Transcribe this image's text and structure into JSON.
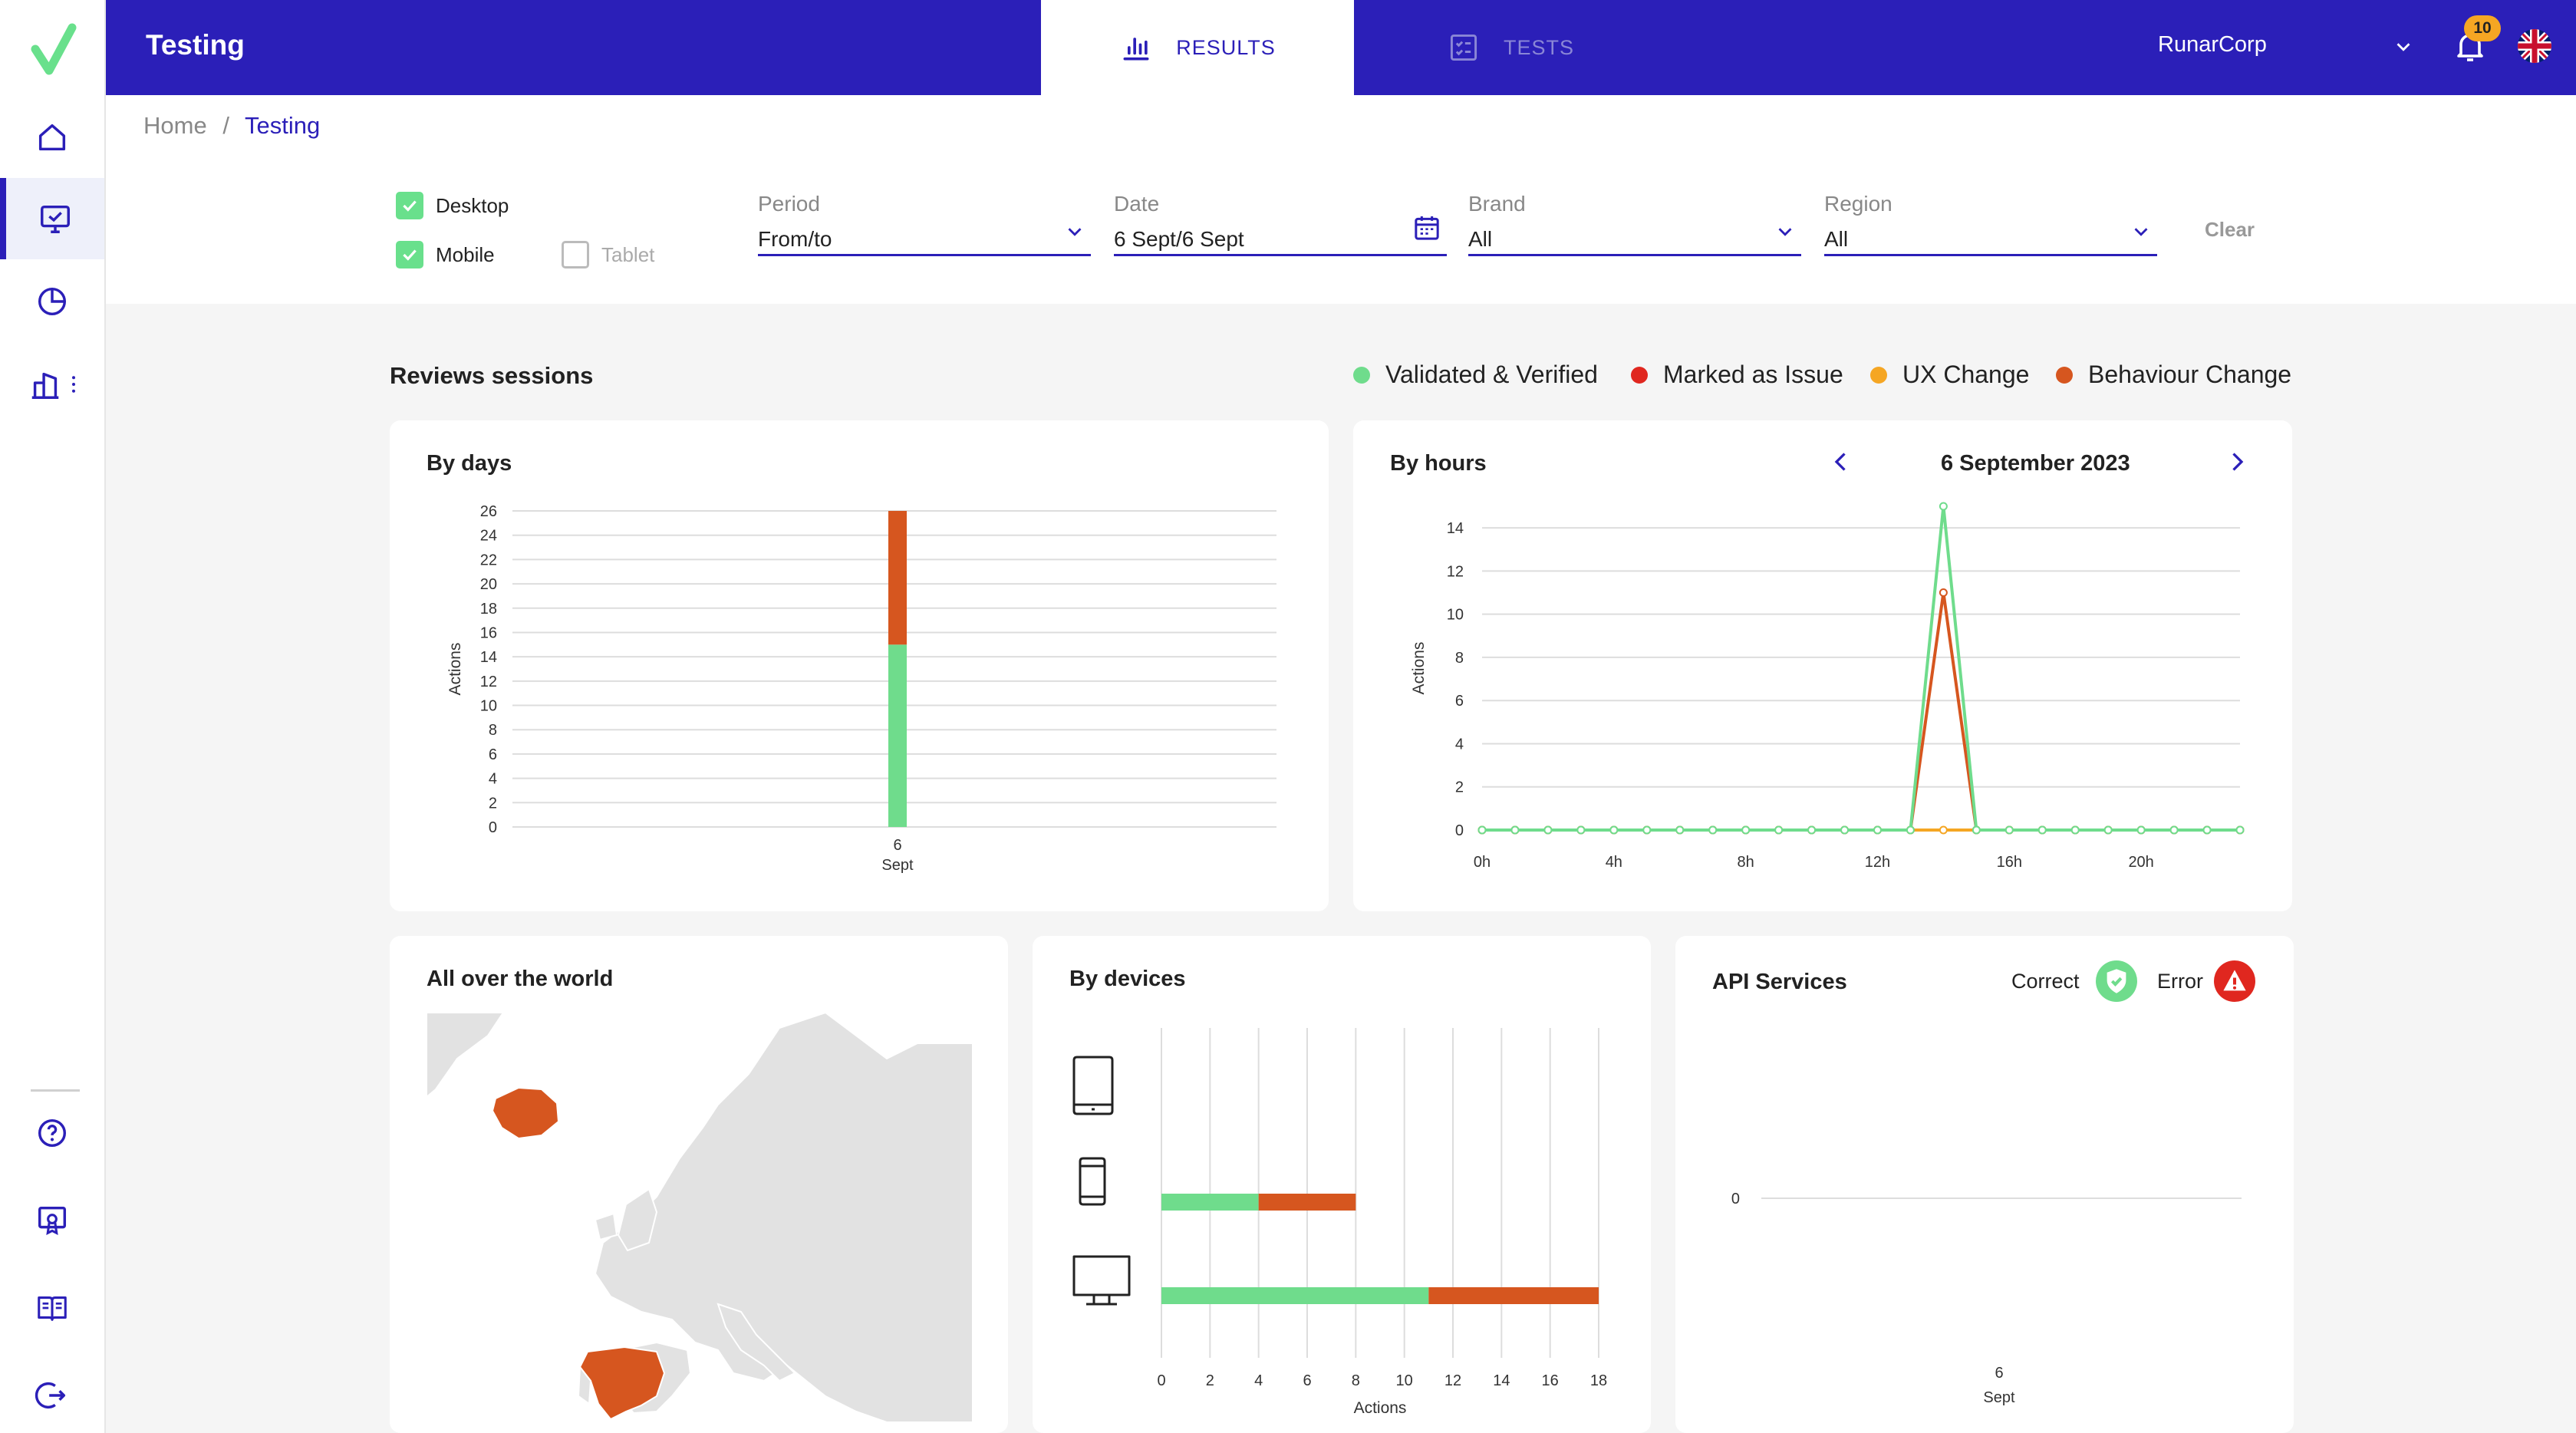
{
  "app": {
    "title": "Testing"
  },
  "tabs": {
    "results": "RESULTS",
    "tests": "TESTS"
  },
  "header": {
    "org": "RunarCorp",
    "notifications": "10"
  },
  "breadcrumb": {
    "home": "Home",
    "sep": "/",
    "current": "Testing"
  },
  "filters": {
    "desktop": {
      "label": "Desktop",
      "checked": true
    },
    "mobile": {
      "label": "Mobile",
      "checked": true
    },
    "tablet": {
      "label": "Tablet",
      "checked": false
    },
    "period": {
      "label": "Period",
      "value": "From/to"
    },
    "date": {
      "label": "Date",
      "value": "6 Sept/6 Sept"
    },
    "brand": {
      "label": "Brand",
      "value": "All"
    },
    "region": {
      "label": "Region",
      "value": "All"
    },
    "clear": "Clear"
  },
  "section": {
    "title": "Reviews sessions"
  },
  "legend": [
    {
      "label": "Validated & Verified",
      "color": "#6fdc8c"
    },
    {
      "label": "Marked as Issue",
      "color": "#e0271f"
    },
    {
      "label": "UX Change",
      "color": "#f5a623"
    },
    {
      "label": "Behaviour Change",
      "color": "#d6561f"
    }
  ],
  "cards": {
    "by_days": "By days",
    "by_hours": "By hours",
    "hours_date": "6 September 2023",
    "world": "All over the world",
    "devices": "By devices",
    "api": "API Services",
    "api_correct": "Correct",
    "api_error": "Error"
  },
  "chart_data": [
    {
      "type": "bar",
      "title": "By days",
      "ylabel": "Actions",
      "xlabel": "",
      "categories": [
        "6\nSept"
      ],
      "cat_line1": "6",
      "cat_line2": "Sept",
      "ylim": [
        0,
        26
      ],
      "yticks": [
        0,
        2,
        4,
        6,
        8,
        10,
        12,
        14,
        16,
        18,
        20,
        22,
        24,
        26
      ],
      "stacked": true,
      "series": [
        {
          "name": "Validated & Verified",
          "color": "#6fdc8c",
          "values": [
            15
          ]
        },
        {
          "name": "Behaviour Change",
          "color": "#d6561f",
          "values": [
            11
          ]
        }
      ],
      "grid": true
    },
    {
      "type": "line",
      "title": "By hours",
      "ylabel": "Actions",
      "ylim": [
        0,
        15
      ],
      "yticks": [
        0,
        2,
        4,
        6,
        8,
        10,
        12,
        14
      ],
      "xticks": [
        0,
        4,
        8,
        12,
        16,
        20
      ],
      "xtick_labels": [
        "0h",
        "4h",
        "8h",
        "12h",
        "16h",
        "20h"
      ],
      "x": [
        0,
        1,
        2,
        3,
        4,
        5,
        6,
        7,
        8,
        9,
        10,
        11,
        12,
        13,
        14,
        15,
        16,
        17,
        18,
        19,
        20,
        21,
        22,
        23
      ],
      "series": [
        {
          "name": "Validated & Verified",
          "color": "#6fdc8c",
          "values": [
            0,
            0,
            0,
            0,
            0,
            0,
            0,
            0,
            0,
            0,
            0,
            0,
            0,
            0,
            15,
            0,
            0,
            0,
            0,
            0,
            0,
            0,
            0,
            0
          ]
        },
        {
          "name": "Behaviour Change",
          "color": "#d6561f",
          "values": [
            0,
            0,
            0,
            0,
            0,
            0,
            0,
            0,
            0,
            0,
            0,
            0,
            0,
            0,
            11,
            0,
            0,
            0,
            0,
            0,
            0,
            0,
            0,
            0
          ]
        },
        {
          "name": "UX Change",
          "color": "#f5a623",
          "values": [
            0,
            0,
            0,
            0,
            0,
            0,
            0,
            0,
            0,
            0,
            0,
            0,
            0,
            0,
            0,
            0,
            0,
            0,
            0,
            0,
            0,
            0,
            0,
            0
          ]
        }
      ],
      "grid": true
    },
    {
      "type": "bar",
      "title": "By devices",
      "orientation": "horizontal",
      "xlabel": "Actions",
      "categories": [
        "Tablet",
        "Mobile",
        "Desktop"
      ],
      "xlim": [
        0,
        18
      ],
      "xticks": [
        0,
        2,
        4,
        6,
        8,
        10,
        12,
        14,
        16,
        18
      ],
      "stacked": true,
      "series": [
        {
          "name": "Validated & Verified",
          "color": "#6fdc8c",
          "values": [
            0,
            4,
            11
          ]
        },
        {
          "name": "Behaviour Change",
          "color": "#d6561f",
          "values": [
            0,
            4,
            7
          ]
        }
      ],
      "grid": true
    },
    {
      "type": "line",
      "title": "API Services",
      "yticks": [
        0
      ],
      "cat_line1": "6",
      "cat_line2": "Sept",
      "series": []
    }
  ]
}
